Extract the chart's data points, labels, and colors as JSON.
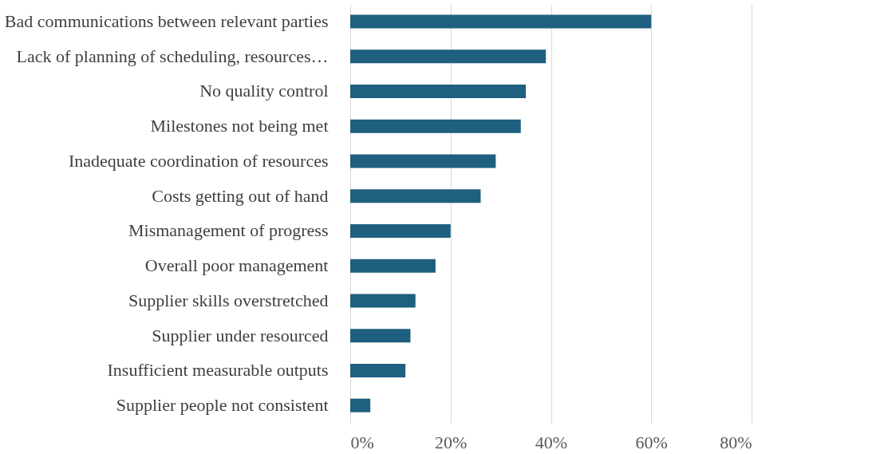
{
  "chart_data": {
    "type": "bar",
    "orientation": "horizontal",
    "color": "#1f5f7f",
    "categories": [
      "Bad communications between relevant parties",
      "Lack of planning of scheduling, resources…",
      "No quality control",
      "Milestones not being met",
      "Inadequate coordination of resources",
      "Costs getting out of hand",
      "Mismanagement of progress",
      "Overall poor management",
      "Supplier skills overstretched",
      "Supplier under resourced",
      "Insufficient measurable outputs",
      "Supplier people not consistent"
    ],
    "values": [
      60,
      39,
      35,
      34,
      29,
      26,
      20,
      17,
      13,
      12,
      11,
      4
    ],
    "xlim": [
      0,
      80
    ],
    "xticks": [
      {
        "value": 0,
        "label": "0%"
      },
      {
        "value": 20,
        "label": "20%"
      },
      {
        "value": 40,
        "label": "40%"
      },
      {
        "value": 60,
        "label": "60%"
      },
      {
        "value": 80,
        "label": "80%"
      }
    ],
    "grid": "x"
  }
}
